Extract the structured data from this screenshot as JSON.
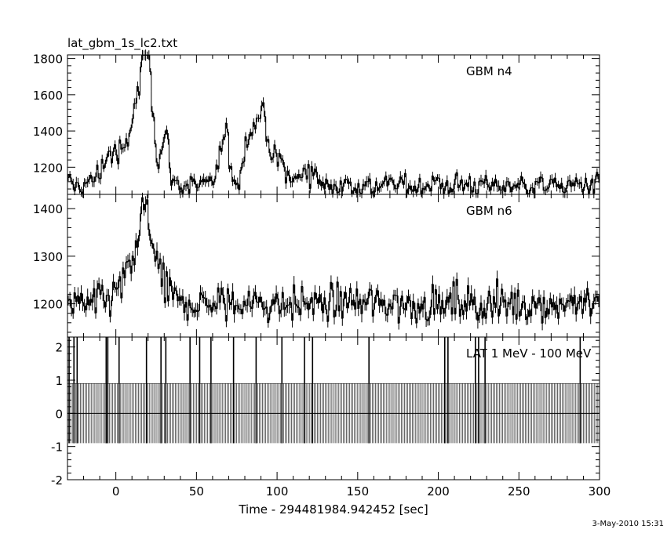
{
  "file_title": "lat_gbm_1s_lc2.txt",
  "timestamp": "3-May-2010 15:31",
  "chart_data": [
    {
      "type": "line",
      "title": "GBM n4",
      "xlim": [
        -30,
        300
      ],
      "ylim": [
        1050,
        1820
      ],
      "yticks_major": [
        1200,
        1400,
        1600,
        1800
      ],
      "ytick_labels": [
        "1200",
        "1400",
        "1600",
        "1800"
      ],
      "baseline": 1100,
      "noise": 55,
      "peaks": [
        {
          "t": -3,
          "amp": 180,
          "w": 6
        },
        {
          "t": 10,
          "amp": 270,
          "w": 4
        },
        {
          "t": 15,
          "amp": 330,
          "w": 3
        },
        {
          "t": 19,
          "amp": 580,
          "w": 2.5
        },
        {
          "t": 22,
          "amp": 220,
          "w": 2.5
        },
        {
          "t": 30,
          "amp": 270,
          "w": 2.5
        },
        {
          "t": 67,
          "amp": 260,
          "w": 3
        },
        {
          "t": 82,
          "amp": 290,
          "w": 3
        },
        {
          "t": 90,
          "amp": 380,
          "w": 3.5
        },
        {
          "t": 100,
          "amp": 120,
          "w": 6
        },
        {
          "t": 120,
          "amp": 90,
          "w": 4
        }
      ]
    },
    {
      "type": "line",
      "title": "GBM n6",
      "xlim": [
        -30,
        300
      ],
      "ylim": [
        1130,
        1430
      ],
      "yticks_major": [
        1200,
        1300,
        1400
      ],
      "ytick_labels": [
        "1200",
        "1300",
        "1400"
      ],
      "baseline": 1200,
      "noise": 32,
      "peaks": [
        {
          "t": 12,
          "amp": 70,
          "w": 8
        },
        {
          "t": 18,
          "amp": 120,
          "w": 4
        },
        {
          "t": 25,
          "amp": 30,
          "w": 6
        }
      ]
    },
    {
      "type": "bar",
      "title": "LAT 1 MeV - 100 MeV",
      "xlim": [
        -30,
        300
      ],
      "ylim": [
        -2,
        2.3
      ],
      "yticks_major": [
        -2,
        -1,
        0,
        1,
        2
      ],
      "ytick_labels": [
        "-2",
        "-1",
        "0",
        "1",
        "2"
      ],
      "xlabel": "Time - 294481984.942452 [sec]",
      "xticks_major": [
        0,
        50,
        100,
        150,
        200,
        250,
        300
      ],
      "xtick_labels": [
        "0",
        "50",
        "100",
        "150",
        "200",
        "250",
        "300"
      ],
      "bin_width": 1,
      "counts_pos": 0.9,
      "counts_neg": -0.9,
      "events_t": [
        -29,
        -26,
        -24,
        -6,
        -5,
        2,
        19,
        28,
        31,
        46,
        52,
        59,
        73,
        87,
        103,
        117,
        122,
        157,
        204,
        206,
        223,
        225,
        229,
        288
      ],
      "events_height": 2.3
    }
  ]
}
